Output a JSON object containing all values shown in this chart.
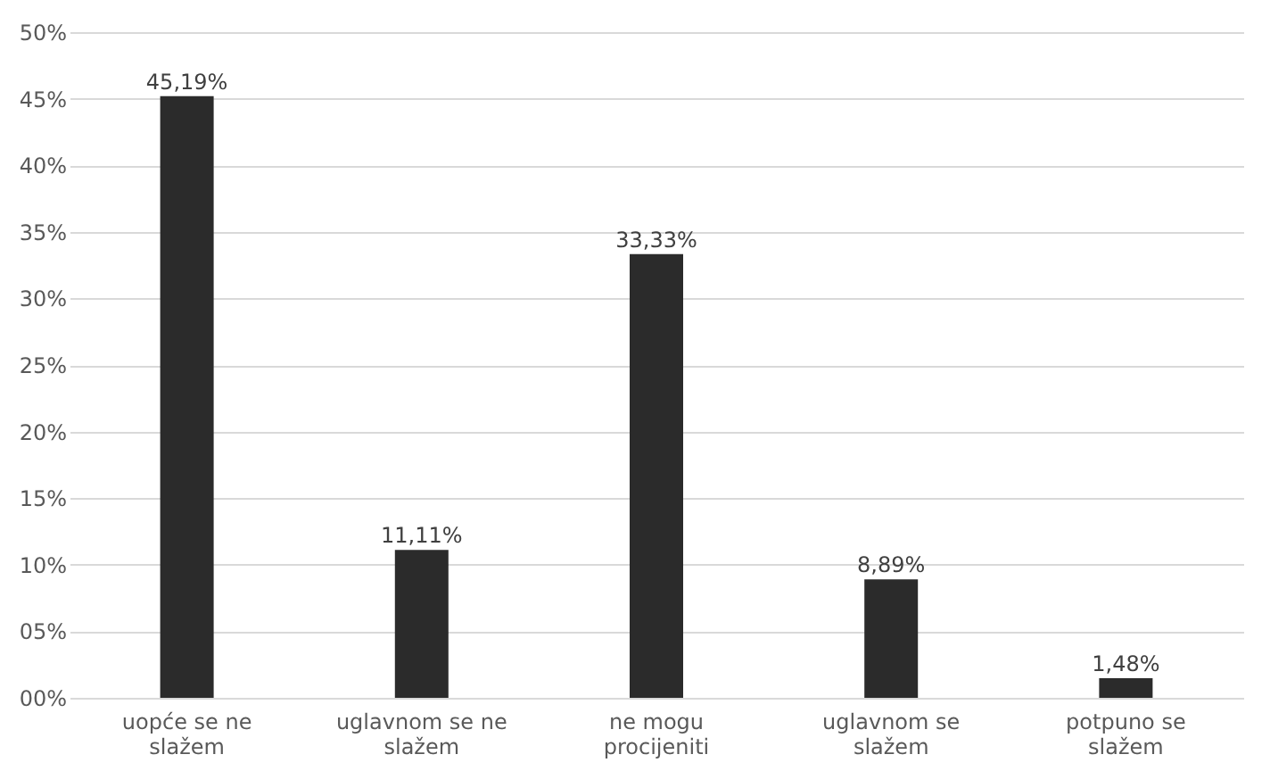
{
  "chart_data": {
    "type": "bar",
    "categories": [
      "uopće se ne slažem",
      "uglavnom se ne slažem",
      "ne mogu procijeniti",
      "uglavnom se slažem",
      "potpuno se slažem"
    ],
    "values": [
      45.19,
      11.11,
      33.33,
      8.89,
      1.48
    ],
    "value_labels": [
      "45,19%",
      "11,11%",
      "33,33%",
      "8,89%",
      "1,48%"
    ],
    "color": "#2b2b2b",
    "ylim": [
      0,
      50
    ],
    "yticks": [
      {
        "value": 0,
        "label": "00%"
      },
      {
        "value": 5,
        "label": "05%"
      },
      {
        "value": 10,
        "label": "10%"
      },
      {
        "value": 15,
        "label": "15%"
      },
      {
        "value": 20,
        "label": "20%"
      },
      {
        "value": 25,
        "label": "25%"
      },
      {
        "value": 30,
        "label": "30%"
      },
      {
        "value": 35,
        "label": "35%"
      },
      {
        "value": 40,
        "label": "40%"
      },
      {
        "value": 45,
        "label": "45%"
      },
      {
        "value": 50,
        "label": "50%"
      }
    ],
    "grid": "y"
  }
}
